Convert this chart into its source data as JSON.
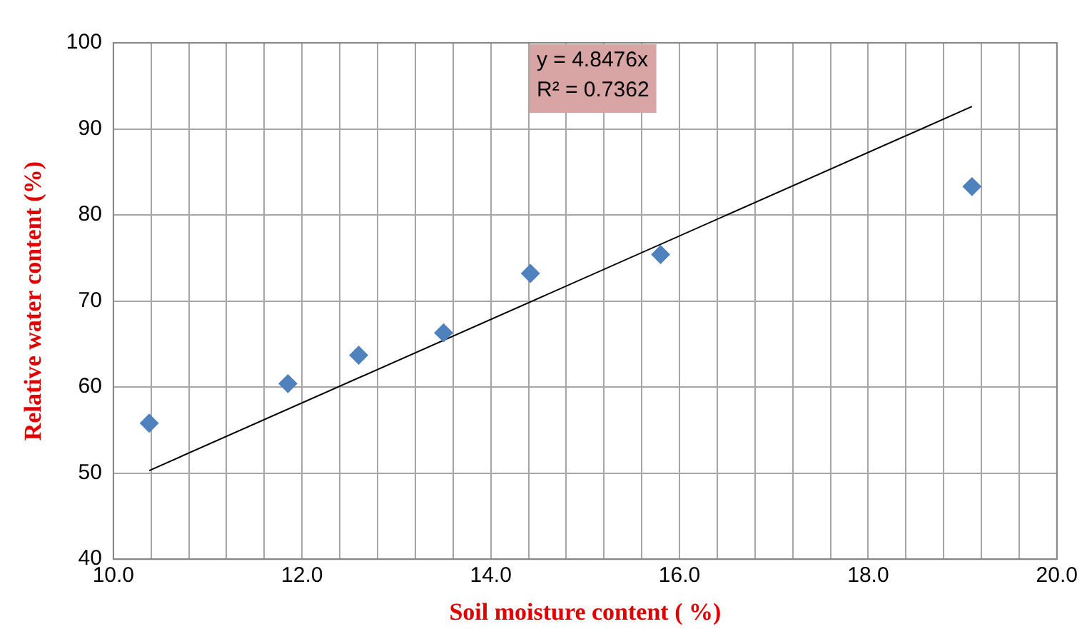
{
  "chart_data": {
    "type": "scatter",
    "xlabel": "Soil moisture content ( %)",
    "ylabel": "Relative water content (%)",
    "xlim": [
      10,
      20
    ],
    "ylim": [
      40,
      100
    ],
    "xticks": [
      {
        "value": 10,
        "label": "10.0"
      },
      {
        "value": 10.4,
        "label": null
      },
      {
        "value": 10.8,
        "label": null
      },
      {
        "value": 11.2,
        "label": null
      },
      {
        "value": 11.6,
        "label": null
      },
      {
        "value": 12,
        "label": "12.0"
      },
      {
        "value": 12.4,
        "label": null
      },
      {
        "value": 12.8,
        "label": null
      },
      {
        "value": 13.2,
        "label": null
      },
      {
        "value": 13.6,
        "label": null
      },
      {
        "value": 14,
        "label": "14.0"
      },
      {
        "value": 14.4,
        "label": null
      },
      {
        "value": 14.8,
        "label": null
      },
      {
        "value": 15.2,
        "label": null
      },
      {
        "value": 15.6,
        "label": null
      },
      {
        "value": 16,
        "label": "16.0"
      },
      {
        "value": 16.4,
        "label": null
      },
      {
        "value": 16.8,
        "label": null
      },
      {
        "value": 17.2,
        "label": null
      },
      {
        "value": 17.6,
        "label": null
      },
      {
        "value": 18,
        "label": "18.0"
      },
      {
        "value": 18.4,
        "label": null
      },
      {
        "value": 18.8,
        "label": null
      },
      {
        "value": 19.2,
        "label": null
      },
      {
        "value": 19.6,
        "label": null
      },
      {
        "value": 20,
        "label": "20.0"
      }
    ],
    "yticks": [
      40,
      50,
      60,
      70,
      80,
      90,
      100
    ],
    "grid": true,
    "legend": false,
    "series": [
      {
        "type": "scatter",
        "color": "#4f81bd",
        "marker": "diamond",
        "x": [
          10.38,
          11.85,
          12.6,
          13.5,
          14.42,
          15.8,
          19.1
        ],
        "values": [
          55.8,
          60.4,
          63.7,
          66.3,
          73.2,
          75.4,
          83.3
        ]
      },
      {
        "type": "line",
        "color": "#000000",
        "marker": "none",
        "line_style": "solid",
        "x": [
          10.38,
          19.1
        ],
        "values": [
          50.3,
          92.6
        ]
      }
    ],
    "annotations": [
      "y = 4.8476x",
      "R² = 0.7362"
    ]
  }
}
